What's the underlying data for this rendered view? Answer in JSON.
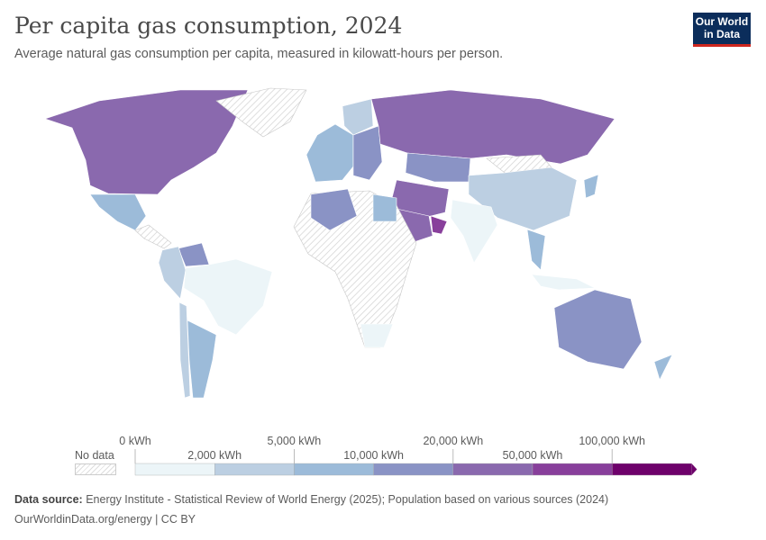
{
  "header": {
    "title": "Per capita gas consumption, 2024",
    "subtitle": "Average natural gas consumption per capita, measured in kilowatt-hours per person.",
    "logo": "Our World in Data"
  },
  "legend": {
    "no_data_label": "No data",
    "thresholds": [
      "0 kWh",
      "2,000 kWh",
      "5,000 kWh",
      "10,000 kWh",
      "20,000 kWh",
      "50,000 kWh",
      "100,000 kWh"
    ],
    "colors": [
      "#ecf5f8",
      "#bccfe2",
      "#9cbbd9",
      "#8a93c5",
      "#8a69ae",
      "#883f9b",
      "#6e016b"
    ],
    "no_data_color": "#e6e6e6"
  },
  "chart_data": {
    "type": "choropleth",
    "title": "Per capita gas consumption, 2024",
    "unit": "kWh",
    "bins": [
      [
        0,
        2000
      ],
      [
        2000,
        5000
      ],
      [
        5000,
        10000
      ],
      [
        10000,
        20000
      ],
      [
        20000,
        50000
      ],
      [
        50000,
        100000
      ],
      [
        100000,
        null
      ]
    ],
    "regions": [
      {
        "id": "canada-usa",
        "bin": 4
      },
      {
        "id": "greenland",
        "bin": null
      },
      {
        "id": "mexico",
        "bin": 2
      },
      {
        "id": "central-america",
        "bin": null
      },
      {
        "id": "venezuela",
        "bin": 3
      },
      {
        "id": "colombia-peru",
        "bin": 1
      },
      {
        "id": "brazil",
        "bin": 0
      },
      {
        "id": "chile",
        "bin": 1
      },
      {
        "id": "argentina",
        "bin": 2
      },
      {
        "id": "europe-west",
        "bin": 2
      },
      {
        "id": "europe-east",
        "bin": 3
      },
      {
        "id": "scandinavia",
        "bin": 1
      },
      {
        "id": "russia",
        "bin": 4
      },
      {
        "id": "central-asia",
        "bin": 3
      },
      {
        "id": "mongolia",
        "bin": null
      },
      {
        "id": "china",
        "bin": 1
      },
      {
        "id": "japan",
        "bin": 2
      },
      {
        "id": "india",
        "bin": 0
      },
      {
        "id": "iran-middle-east",
        "bin": 4
      },
      {
        "id": "saudi-arabia",
        "bin": 4
      },
      {
        "id": "qatar-uae",
        "bin": 5
      },
      {
        "id": "africa",
        "bin": null
      },
      {
        "id": "algeria",
        "bin": 3
      },
      {
        "id": "egypt",
        "bin": 2
      },
      {
        "id": "south-africa",
        "bin": 0
      },
      {
        "id": "southeast-asia",
        "bin": 2
      },
      {
        "id": "indonesia",
        "bin": 0
      },
      {
        "id": "australia",
        "bin": 3
      },
      {
        "id": "new-zealand",
        "bin": 2
      }
    ]
  },
  "footer": {
    "source_label": "Data source:",
    "source": " Energy Institute - Statistical Review of World Energy (2025); Population based on various sources (2024)",
    "url": "OurWorldinData.org/energy | CC BY"
  }
}
